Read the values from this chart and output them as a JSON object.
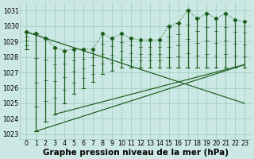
{
  "title": "Graphe pression niveau de la mer (hPa)",
  "hours": [
    0,
    1,
    2,
    3,
    4,
    5,
    6,
    7,
    8,
    9,
    10,
    11,
    12,
    13,
    14,
    15,
    16,
    17,
    18,
    19,
    20,
    21,
    22,
    23
  ],
  "max_vals": [
    1029.6,
    1029.5,
    1029.2,
    1028.6,
    1028.4,
    1028.5,
    1028.5,
    1028.5,
    1029.5,
    1029.2,
    1029.5,
    1029.2,
    1029.1,
    1029.1,
    1029.1,
    1030.0,
    1030.2,
    1031.0,
    1030.5,
    1030.8,
    1030.5,
    1030.8,
    1030.4,
    1030.3
  ],
  "min_vals": [
    1028.5,
    1023.2,
    1023.8,
    1024.3,
    1025.0,
    1025.6,
    1026.0,
    1026.4,
    1026.9,
    1027.1,
    1027.3,
    1027.3,
    1027.3,
    1027.3,
    1027.3,
    1027.3,
    1027.3,
    1027.3,
    1027.3,
    1027.3,
    1027.3,
    1027.3,
    1027.3,
    1027.3
  ],
  "trend_lines": [
    {
      "x": [
        0,
        23
      ],
      "y": [
        1029.6,
        1025.0
      ]
    },
    {
      "x": [
        1,
        23
      ],
      "y": [
        1023.2,
        1027.5
      ]
    },
    {
      "x": [
        3,
        23
      ],
      "y": [
        1024.3,
        1027.5
      ]
    }
  ],
  "ylim": [
    1022.7,
    1031.5
  ],
  "yticks": [
    1023,
    1024,
    1025,
    1026,
    1027,
    1028,
    1029,
    1030,
    1031
  ],
  "xlim": [
    -0.7,
    23.7
  ],
  "bg_color": "#cce8e4",
  "grid_color": "#99ccbb",
  "line_color": "#1a5c1a",
  "title_fontsize": 7.5,
  "tick_fontsize": 5.8,
  "figsize": [
    3.2,
    2.0
  ],
  "dpi": 100
}
